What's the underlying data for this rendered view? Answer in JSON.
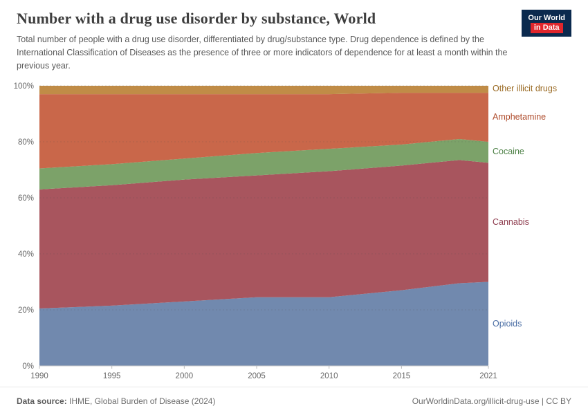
{
  "header": {
    "title": "Number with a drug use disorder by substance, World",
    "subtitle": "Total number of people with a drug use disorder, differentiated by drug/substance type. Drug dependence is defined by the International Classification of Diseases as the presence of three or more indicators of dependence for at least a month within the previous year.",
    "logo": {
      "line1": "Our World",
      "line2": "in Data",
      "bg": "#0b2a4e",
      "accent": "#e0262c"
    }
  },
  "chart_data": {
    "type": "area",
    "stacking": "percent",
    "title": "Number with a drug use disorder by substance, World",
    "x": [
      1990,
      1995,
      2000,
      2005,
      2010,
      2015,
      2019,
      2021
    ],
    "xlim": [
      1990,
      2021
    ],
    "xticks": [
      1990,
      1995,
      2000,
      2005,
      2010,
      2015,
      2021
    ],
    "ylim": [
      0,
      100
    ],
    "yticks": [
      0,
      20,
      40,
      60,
      80,
      100
    ],
    "ytick_suffix": "%",
    "grid": true,
    "legend_position": "right",
    "series": [
      {
        "name": "Opioids",
        "color": "#7189ae",
        "label_color": "#4c6fa5",
        "values": [
          20.5,
          21.5,
          23.0,
          24.5,
          24.5,
          27.0,
          29.5,
          30.0
        ]
      },
      {
        "name": "Cannabis",
        "color": "#a8555e",
        "label_color": "#8e3c4e",
        "values": [
          42.5,
          43.0,
          43.5,
          43.5,
          45.0,
          44.5,
          44.0,
          42.5
        ]
      },
      {
        "name": "Cocaine",
        "color": "#7ca269",
        "label_color": "#4c8045",
        "values": [
          7.5,
          7.5,
          7.5,
          8.0,
          8.0,
          7.5,
          7.5,
          7.5
        ]
      },
      {
        "name": "Amphetamine",
        "color": "#c9674a",
        "label_color": "#ae4a2a",
        "values": [
          26.5,
          25.0,
          23.0,
          21.0,
          19.5,
          18.5,
          16.5,
          17.5
        ]
      },
      {
        "name": "Other illicit drugs",
        "color": "#c08c47",
        "label_color": "#9a6a23",
        "values": [
          3.0,
          3.0,
          3.0,
          3.0,
          3.0,
          2.5,
          2.5,
          2.5
        ]
      }
    ]
  },
  "footer": {
    "source_label": "Data source:",
    "source_text": " IHME, Global Burden of Disease (2024)",
    "credit": "OurWorldinData.org/illicit-drug-use | CC BY"
  }
}
